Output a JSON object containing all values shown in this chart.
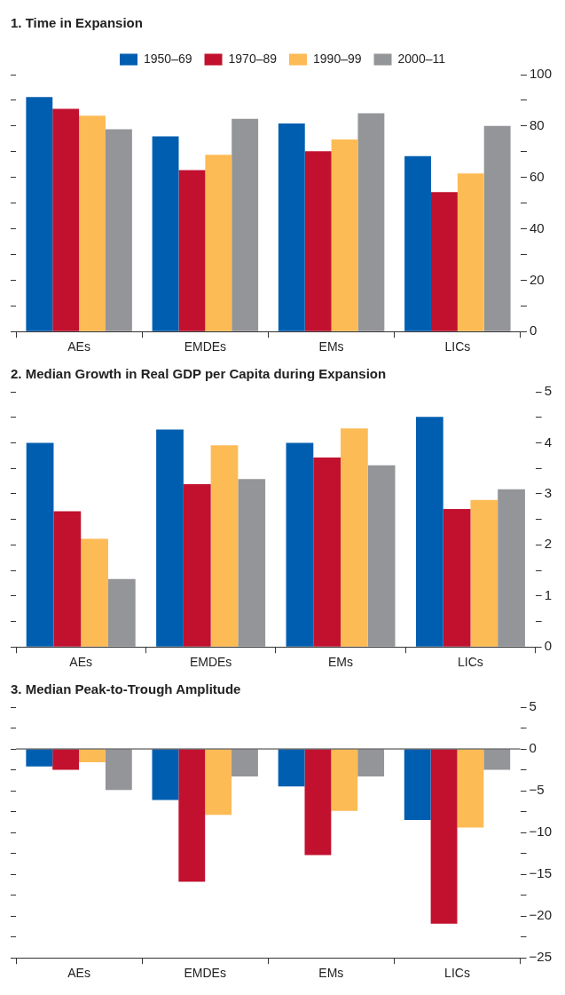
{
  "chart_data": [
    {
      "type": "bar",
      "title": "1. Time in Expansion",
      "legend": "top",
      "categories": [
        "AEs",
        "EMDEs",
        "EMs",
        "LICs"
      ],
      "series": [
        {
          "name": "1950–69",
          "color": "#005eb0",
          "values": [
            91.3,
            76,
            81,
            68.3
          ]
        },
        {
          "name": "1970–89",
          "color": "#c1112e",
          "values": [
            86.7,
            62.8,
            70.2,
            54.3
          ]
        },
        {
          "name": "1990–99",
          "color": "#fdbb55",
          "values": [
            84,
            68.8,
            74.8,
            61.5
          ]
        },
        {
          "name": "2000–11",
          "color": "#939598",
          "values": [
            78.7,
            82.8,
            85,
            80
          ]
        }
      ],
      "ylim": [
        0,
        100
      ],
      "yticks": [
        0,
        {
          "value": 10,
          "label": null
        },
        20,
        {
          "value": 30,
          "label": null
        },
        40,
        {
          "value": 50,
          "label": null
        },
        60,
        {
          "value": 70,
          "label": null
        },
        80,
        {
          "value": 90,
          "label": null
        },
        100
      ]
    },
    {
      "type": "bar",
      "title": "2. Median Growth in Real GDP per Capita during Expansion",
      "categories": [
        "AEs",
        "EMDEs",
        "EMs",
        "LICs"
      ],
      "series": [
        {
          "color": "#005eb0",
          "values": [
            4.0,
            4.26,
            4.0,
            4.51
          ]
        },
        {
          "color": "#c1112e",
          "values": [
            2.66,
            3.19,
            3.71,
            2.7
          ]
        },
        {
          "color": "#fdbb55",
          "values": [
            2.12,
            3.95,
            4.28,
            2.88
          ]
        },
        {
          "color": "#939598",
          "values": [
            1.33,
            3.29,
            3.56,
            3.09
          ]
        }
      ],
      "ylim": [
        0,
        5
      ],
      "yticks": [
        0,
        {
          "value": 0.5,
          "label": null
        },
        1,
        {
          "value": 1.5,
          "label": null
        },
        2,
        {
          "value": 2.5,
          "label": null
        },
        3,
        {
          "value": 3.5,
          "label": null
        },
        4,
        {
          "value": 4.5,
          "label": null
        },
        5
      ]
    },
    {
      "type": "bar",
      "title": "3. Median Peak-to-Trough Amplitude",
      "categories": [
        "AEs",
        "EMDEs",
        "EMs",
        "LICs"
      ],
      "series": [
        {
          "color": "#005eb0",
          "values": [
            -2.1,
            -6.1,
            -4.5,
            -8.5
          ]
        },
        {
          "color": "#c1112e",
          "values": [
            -2.5,
            -15.9,
            -12.7,
            -20.9
          ]
        },
        {
          "color": "#fdbb55",
          "values": [
            -1.6,
            -7.9,
            -7.4,
            -9.4
          ]
        },
        {
          "color": "#939598",
          "values": [
            -4.9,
            -3.3,
            -3.3,
            -2.5
          ]
        }
      ],
      "ylim": [
        -25,
        5
      ],
      "yticks": [
        {
          "value": -25,
          "label": "−25"
        },
        {
          "value": -22.5,
          "label": null
        },
        {
          "value": -20,
          "label": "−20"
        },
        {
          "value": -17.5,
          "label": null
        },
        {
          "value": -15,
          "label": "−15"
        },
        {
          "value": -12.5,
          "label": null
        },
        {
          "value": -10,
          "label": "−10"
        },
        {
          "value": -7.5,
          "label": null
        },
        {
          "value": -5,
          "label": "−5"
        },
        {
          "value": -2.5,
          "label": null
        },
        0,
        {
          "value": 2.5,
          "label": null
        },
        5
      ]
    }
  ]
}
